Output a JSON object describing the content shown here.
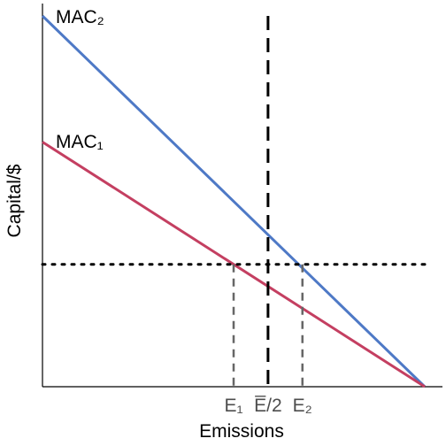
{
  "chart_data": {
    "type": "line",
    "xlabel": "Emissions",
    "ylabel": "Capital/$",
    "xlim": [
      0,
      100
    ],
    "ylim": [
      0,
      100
    ],
    "grid": false,
    "x_tick_labels": [
      {
        "x": 50,
        "text": "E₁"
      },
      {
        "x": 59,
        "text": "E̅/2"
      },
      {
        "x": 68,
        "text": "E₂"
      }
    ],
    "series": [
      {
        "name": "MAC₂",
        "color": "#4e79c6",
        "x": [
          0,
          100
        ],
        "y": [
          100,
          0
        ]
      },
      {
        "name": "MAC₁",
        "color": "#c43f61",
        "x": [
          0,
          100
        ],
        "y": [
          66,
          0
        ]
      }
    ],
    "reference_lines": [
      {
        "orientation": "horizontal",
        "y": 33,
        "style": "dotted",
        "color": "#000000"
      },
      {
        "orientation": "vertical",
        "x": 59,
        "style": "dashed",
        "color": "#000000"
      },
      {
        "orientation": "vertical",
        "x": 50,
        "y_top": 33,
        "style": "dashed",
        "color": "#666666"
      },
      {
        "orientation": "vertical",
        "x": 68,
        "y_top": 33,
        "style": "dashed",
        "color": "#666666"
      }
    ]
  }
}
